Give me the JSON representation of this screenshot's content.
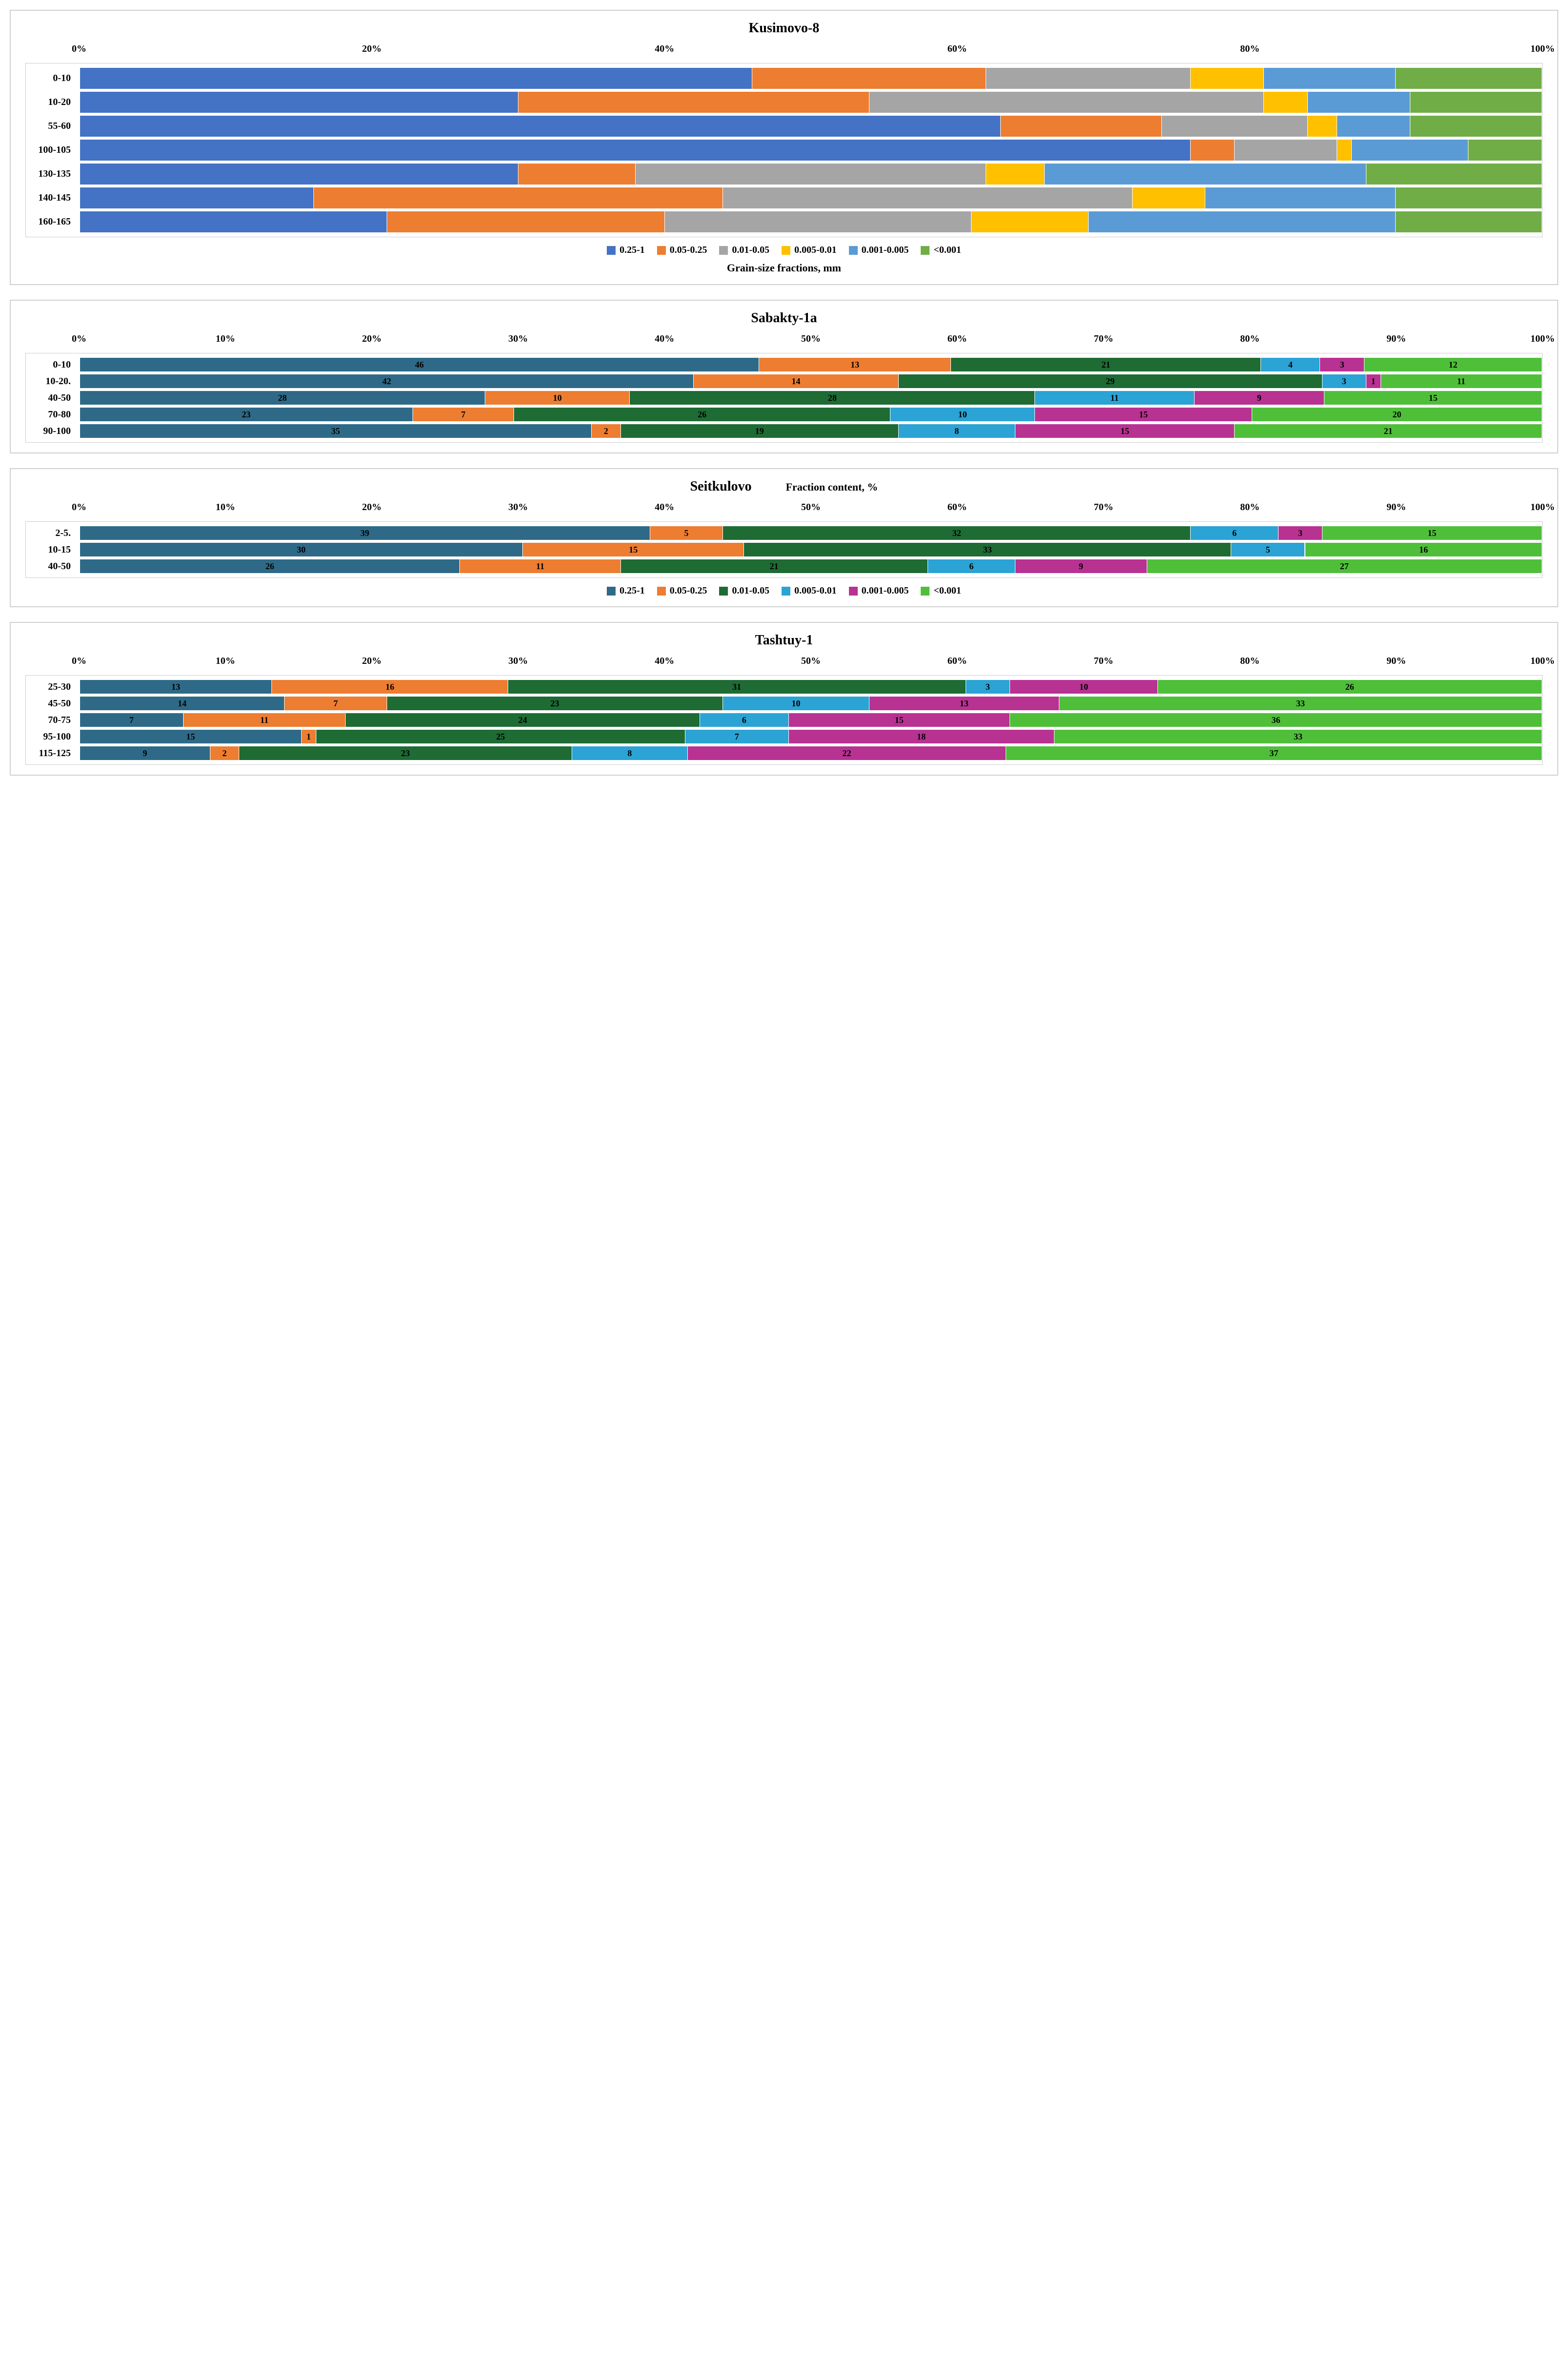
{
  "palette_a": {
    "c1": "#4472c4",
    "c2": "#ed7d31",
    "c3": "#a5a5a5",
    "c4": "#ffc000",
    "c5": "#5b9bd5",
    "c6": "#70ad47"
  },
  "palette_b": {
    "c1": "#2e6a87",
    "c2": "#ed7d31",
    "c3": "#1e6b34",
    "c4": "#2ba3d4",
    "c5": "#b83292",
    "c6": "#4fbf3a"
  },
  "legend_a": {
    "items": [
      "0.25-1",
      "0.05-0.25",
      "0.01-0.05",
      "0.005-0.01",
      "0.001-0.005",
      "<0.001"
    ],
    "caption": "Grain-size fractions, mm"
  },
  "legend_b": {
    "items": [
      "0.25-1",
      "0.05-0.25",
      "0.01-0.05",
      "0.005-0.01",
      "0.001-0.005",
      "<0.001"
    ]
  },
  "charts": [
    {
      "id": "kusimovo",
      "title": "Kusimovo-8",
      "palette": "a",
      "tick_step": 20,
      "show_values": false,
      "bar_tall": true,
      "show_legend": true,
      "legend_caption": true,
      "rows": [
        {
          "label": "0-10",
          "values": [
            46,
            16,
            14,
            5,
            9,
            10
          ]
        },
        {
          "label": "10-20",
          "values": [
            30,
            24,
            27,
            3,
            7,
            9
          ]
        },
        {
          "label": "55-60",
          "values": [
            63,
            11,
            10,
            2,
            5,
            9
          ]
        },
        {
          "label": "100-105",
          "values": [
            76,
            3,
            7,
            1,
            8,
            5
          ]
        },
        {
          "label": "130-135",
          "values": [
            30,
            8,
            24,
            4,
            22,
            12
          ]
        },
        {
          "label": "140-145",
          "values": [
            16,
            28,
            28,
            5,
            13,
            10
          ]
        },
        {
          "label": "160-165",
          "values": [
            21,
            19,
            21,
            8,
            21,
            10
          ]
        }
      ]
    },
    {
      "id": "sabakty",
      "title": "Sabakty-1a",
      "palette": "b",
      "tick_step": 10,
      "show_values": true,
      "bar_tall": false,
      "show_legend": false,
      "rows": [
        {
          "label": "0-10",
          "values": [
            46,
            13,
            21,
            4,
            3,
            12
          ],
          "suppress": [
            0,
            0,
            0,
            0,
            0,
            0
          ]
        },
        {
          "label": "10-20.",
          "values": [
            42,
            14,
            29,
            3,
            1,
            11
          ],
          "suppress": [
            0,
            0,
            0,
            0,
            0,
            0
          ]
        },
        {
          "label": "40-50",
          "values": [
            28,
            10,
            28,
            11,
            9,
            15
          ],
          "suppress": [
            0,
            0,
            0,
            0,
            0,
            0
          ]
        },
        {
          "label": "70-80",
          "values": [
            23,
            7,
            26,
            10,
            15,
            20
          ],
          "suppress": [
            0,
            0,
            0,
            0,
            0,
            0
          ]
        },
        {
          "label": "90-100",
          "values": [
            35,
            2,
            19,
            8,
            15,
            21
          ],
          "suppress": [
            0,
            0,
            0,
            0,
            0,
            0
          ]
        }
      ]
    },
    {
      "id": "seitkulovo",
      "title": "Seitkulovo",
      "subtitle": "Fraction content, %",
      "palette": "b",
      "tick_step": 10,
      "show_values": true,
      "bar_tall": false,
      "show_legend": true,
      "rows": [
        {
          "label": "2-5.",
          "values": [
            39,
            5,
            32,
            6,
            3,
            15
          ],
          "suppress": [
            0,
            0,
            0,
            0,
            0,
            0
          ]
        },
        {
          "label": "10-15",
          "values": [
            30,
            15,
            33,
            5,
            0,
            16
          ],
          "shown": [
            30,
            15,
            33,
            5,
            0,
            16
          ],
          "suppress": [
            0,
            0,
            0,
            0,
            0,
            0
          ]
        },
        {
          "label": "40-50",
          "values": [
            26,
            11,
            21,
            6,
            9,
            27
          ],
          "suppress": [
            0,
            0,
            0,
            0,
            0,
            0
          ]
        }
      ]
    },
    {
      "id": "tashtuy",
      "title": "Tashtuy-1",
      "palette": "b",
      "tick_step": 10,
      "show_values": true,
      "bar_tall": false,
      "show_legend": false,
      "rows": [
        {
          "label": "25-30",
          "values": [
            13,
            16,
            31,
            3,
            10,
            26
          ],
          "suppress": [
            0,
            0,
            0,
            0,
            0,
            0
          ]
        },
        {
          "label": "45-50",
          "values": [
            14,
            7,
            23,
            10,
            13,
            33
          ],
          "suppress": [
            0,
            0,
            0,
            0,
            0,
            0
          ]
        },
        {
          "label": "70-75",
          "values": [
            7,
            11,
            24,
            6,
            15,
            36
          ],
          "suppress": [
            0,
            0,
            0,
            0,
            0,
            0
          ]
        },
        {
          "label": "95-100",
          "values": [
            15,
            1,
            25,
            7,
            18,
            33
          ],
          "suppress": [
            0,
            0,
            0,
            0,
            0,
            0
          ]
        },
        {
          "label": "115-125",
          "values": [
            9,
            2,
            23,
            8,
            22,
            37
          ],
          "suppress": [
            0,
            0,
            0,
            0,
            0,
            0
          ]
        }
      ]
    }
  ]
}
